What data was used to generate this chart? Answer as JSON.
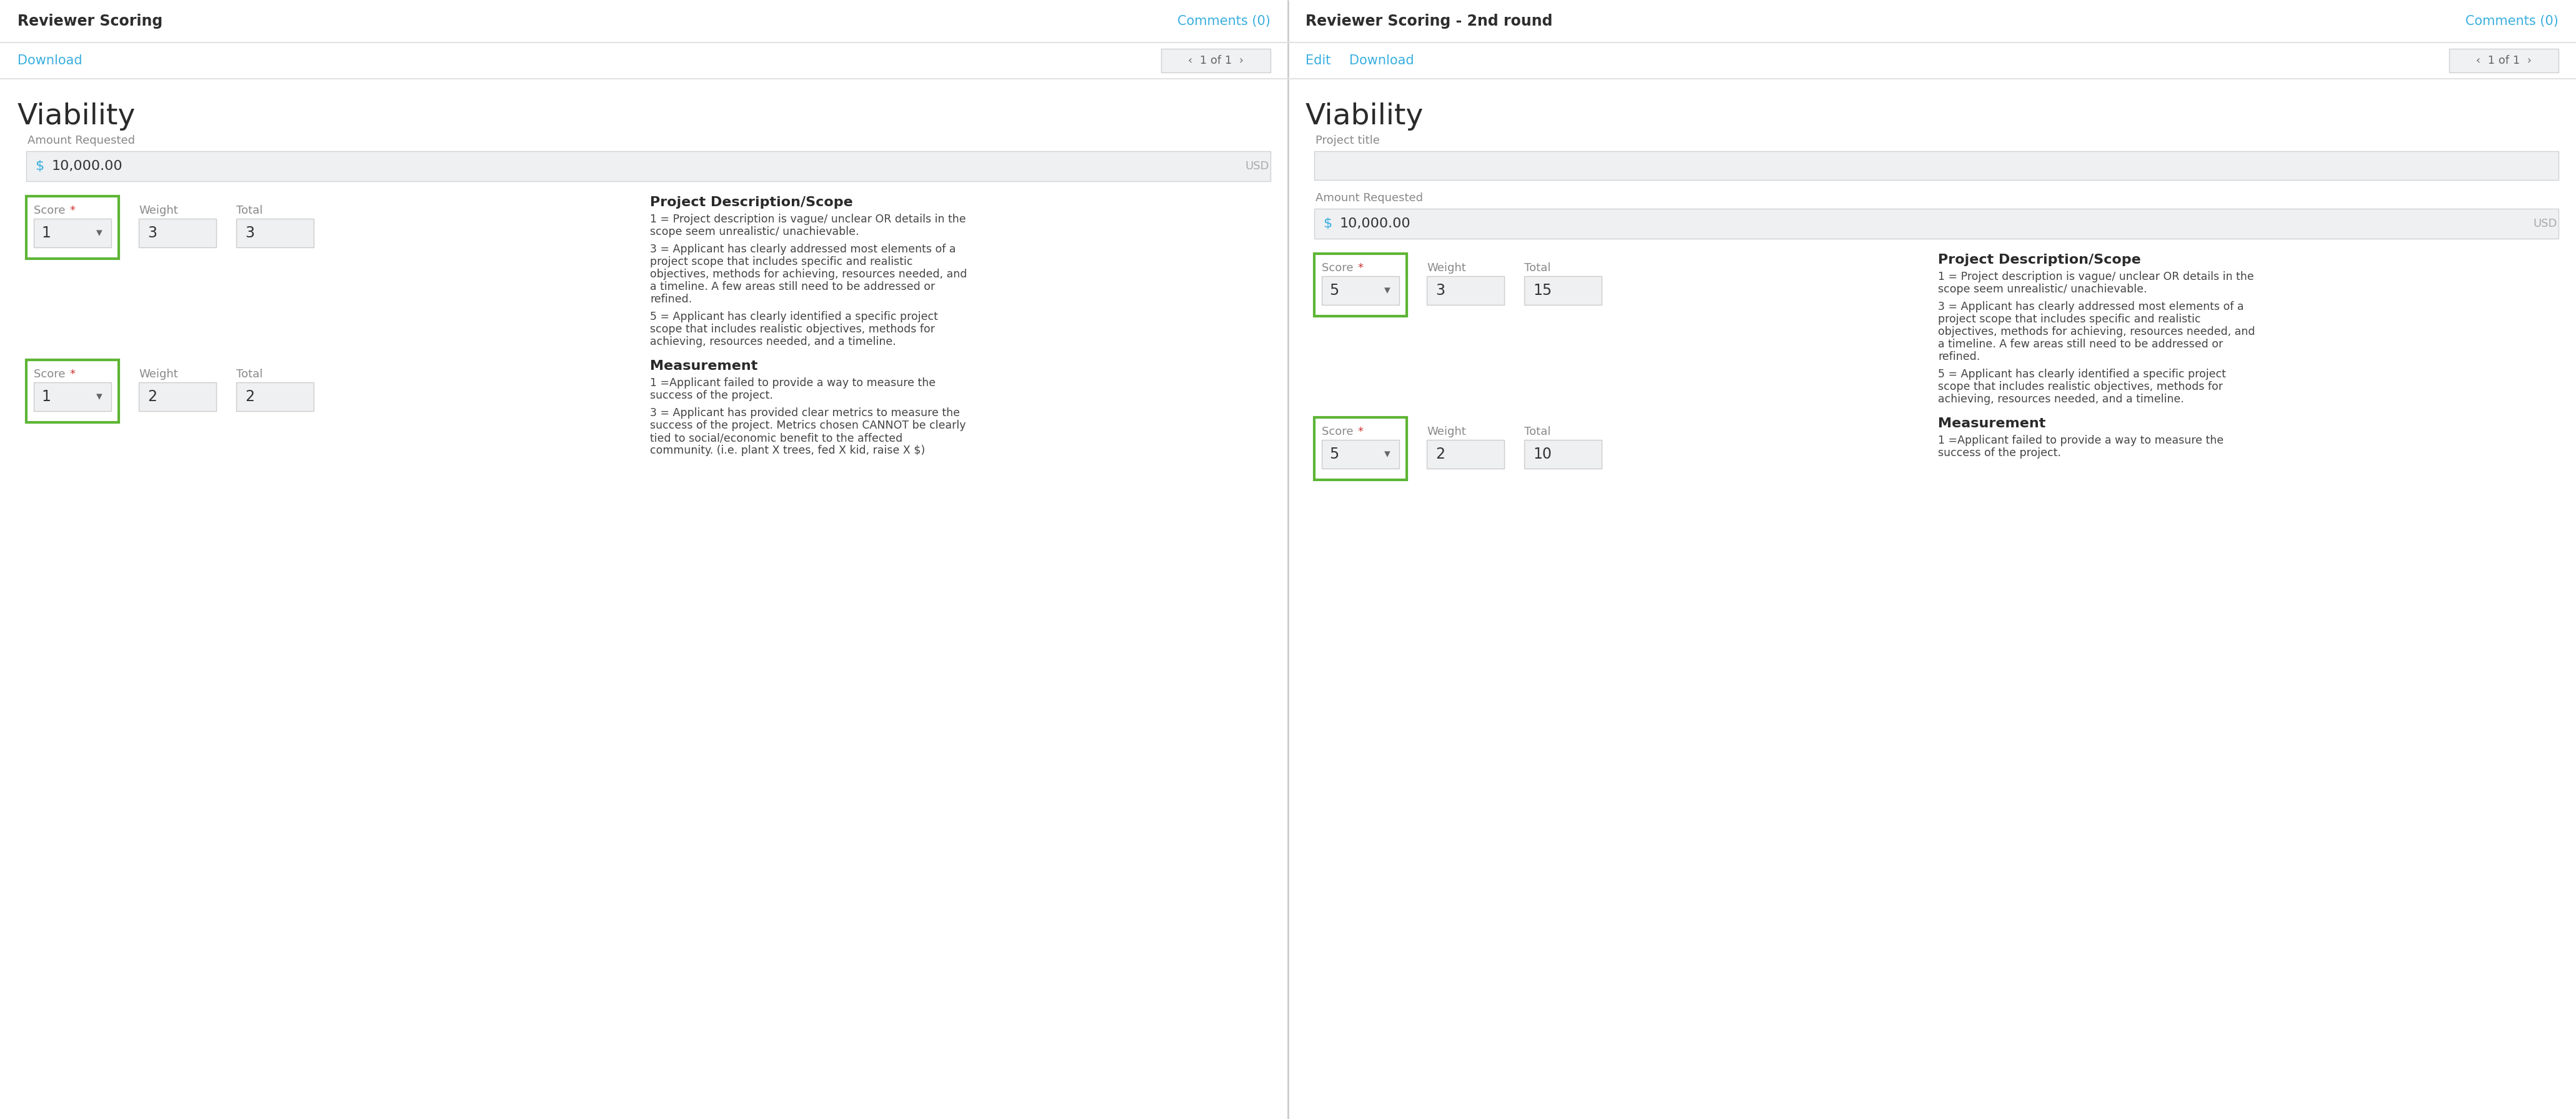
{
  "bg_color": "#ffffff",
  "input_bg": "#eef0f2",
  "input_bg2": "#f5f6f7",
  "divider": "#e2e2e2",
  "text_dark": "#2d2d2d",
  "text_medium": "#888888",
  "text_blue": "#3aafe0",
  "text_red": "#cc3333",
  "green_border": "#5db535",
  "text_body": "#444444",
  "panel_divider": "#cccccc",
  "left_panel": {
    "header": "Reviewer Scoring",
    "comments": "Comments (0)",
    "download": "Download",
    "pagination": "‹  1 of 1  ›",
    "section_title": "Viability",
    "amount_label": "Amount Requested",
    "amount_value": "10,000.00",
    "amount_suffix": "USD",
    "score_sections": [
      {
        "score_value": "1",
        "weight_value": "3",
        "total_value": "3",
        "desc_title": "Project Description/Scope",
        "desc_lines": [
          "1 = Project description is vague/ unclear OR details in the\nscope seem unrealistic/ unachievable.",
          "3 = Applicant has clearly addressed most elements of a\nproject scope that includes specific and realistic\nobjectives, methods for achieving, resources needed, and\na timeline. A few areas still need to be addressed or\nrefined.",
          "5 = Applicant has clearly identified a specific project\nscope that includes realistic objectives, methods for\nachieving, resources needed, and a timeline."
        ]
      },
      {
        "score_value": "1",
        "weight_value": "2",
        "total_value": "2",
        "desc_title": "Measurement",
        "desc_lines": [
          "1 =Applicant failed to provide a way to measure the\nsuccess of the project.",
          "3 = Applicant has provided clear metrics to measure the\nsuccess of the project. Metrics chosen CANNOT be clearly\ntied to social/economic benefit to the affected\ncommunity. (i.e. plant X trees, fed X kid, raise X $)"
        ]
      }
    ]
  },
  "right_panel": {
    "header": "Reviewer Scoring - 2nd round",
    "comments": "Comments (0)",
    "edit": "Edit",
    "download": "Download",
    "pagination": "‹  1 of 1  ›",
    "section_title": "Viability",
    "project_title_label": "Project title",
    "amount_label": "Amount Requested",
    "amount_value": "10,000.00",
    "amount_suffix": "USD",
    "score_sections": [
      {
        "score_value": "5",
        "weight_value": "3",
        "total_value": "15",
        "desc_title": "Project Description/Scope",
        "desc_lines": [
          "1 = Project description is vague/ unclear OR details in the\nscope seem unrealistic/ unachievable.",
          "3 = Applicant has clearly addressed most elements of a\nproject scope that includes specific and realistic\nobjectives, methods for achieving, resources needed, and\na timeline. A few areas still need to be addressed or\nrefined.",
          "5 = Applicant has clearly identified a specific project\nscope that includes realistic objectives, methods for\nachieving, resources needed, and a timeline."
        ]
      },
      {
        "score_value": "5",
        "weight_value": "2",
        "total_value": "10",
        "desc_title": "Measurement",
        "desc_lines": [
          "1 =Applicant failed to provide a way to measure the\nsuccess of the project."
        ]
      }
    ]
  }
}
